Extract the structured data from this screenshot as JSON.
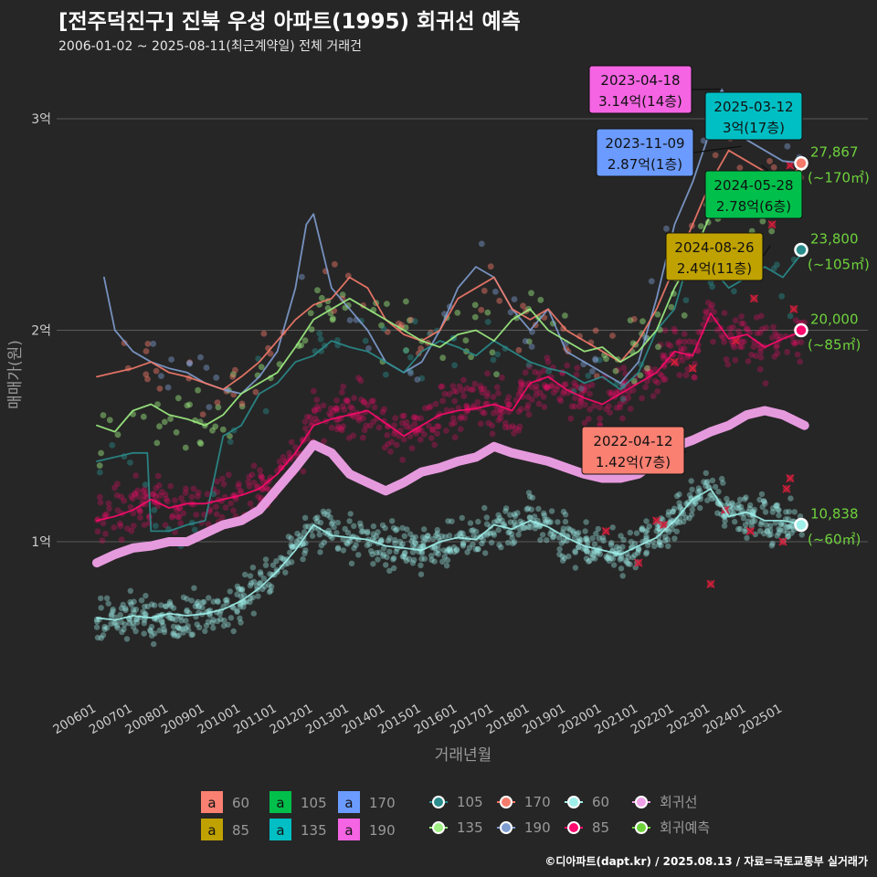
{
  "title": "[전주덕진구] 진북 우성 아파트(1995) 회귀선 예측",
  "subtitle": "2006-01-02 ~ 2025-08-11(최근계약일) 전체 거래건",
  "credit": "©디아파트(dapt.kr) / 2025.08.13 / 자료=국토교통부 실거래가",
  "colors": {
    "background": "#262626",
    "grid": "#5a5a5a",
    "axis_text": "#cccccc",
    "s60": "#9ff0ea",
    "s85": "#ff0a6e",
    "s105": "#2a8c8c",
    "s135": "#9fef83",
    "s170": "#f47a6a",
    "s190": "#7f9dd0",
    "regression": "#f0a0e8",
    "forecast_text": "#6ed23c",
    "box60": "#fa8072",
    "box85": "#bfa100",
    "box105": "#00c04b",
    "box135": "#00bfc4",
    "box170": "#6b9bff",
    "box190": "#f564e3",
    "cancel": "#d81e3c"
  },
  "chart_data": {
    "type": "scatter",
    "title": "[전주덕진구] 진북 우성 아파트(1995) 회귀선 예측",
    "xlabel": "거래년월",
    "ylabel": "매매가(원)",
    "xlim": [
      2006.0,
      2025.8
    ],
    "ylim": [
      0.35,
      3.3
    ],
    "x_ticks": [
      "200601",
      "200701",
      "200801",
      "200901",
      "201001",
      "201101",
      "201201",
      "201301",
      "201401",
      "201501",
      "201601",
      "201701",
      "201801",
      "201901",
      "202001",
      "202101",
      "202201",
      "202301",
      "202401",
      "202501"
    ],
    "x_tick_values": [
      2006,
      2007,
      2008,
      2009,
      2010,
      2011,
      2012,
      2013,
      2014,
      2015,
      2016,
      2017,
      2018,
      2019,
      2020,
      2021,
      2022,
      2023,
      2024,
      2025
    ],
    "y_ticks": [
      "1억",
      "2억",
      "3억"
    ],
    "y_tick_values": [
      1,
      2,
      3
    ],
    "grid": true,
    "legend_position": "bottom",
    "legend_box": [
      {
        "label": "60",
        "color_key": "box60",
        "glyph": "a"
      },
      {
        "label": "85",
        "color_key": "box85",
        "glyph": "a"
      },
      {
        "label": "105",
        "color_key": "box105",
        "glyph": "a"
      },
      {
        "label": "135",
        "color_key": "box135",
        "glyph": "a"
      },
      {
        "label": "170",
        "color_key": "box170",
        "glyph": "a"
      },
      {
        "label": "190",
        "color_key": "box190",
        "glyph": "a"
      }
    ],
    "legend_lines": [
      {
        "label": "105",
        "color_key": "s105"
      },
      {
        "label": "135",
        "color_key": "s135"
      },
      {
        "label": "170",
        "color_key": "s170"
      },
      {
        "label": "190",
        "color_key": "s190"
      },
      {
        "label": "60",
        "color_key": "s60"
      },
      {
        "label": "85",
        "color_key": "s85"
      },
      {
        "label": "회귀선",
        "color_key": "regression"
      },
      {
        "label": "회귀예측",
        "color_key": "forecast_text"
      }
    ],
    "series": [
      {
        "name": "60",
        "color_key": "s60",
        "x": [
          2006.0,
          2006.5,
          2007.0,
          2007.5,
          2008.0,
          2008.5,
          2009.0,
          2009.5,
          2010.0,
          2010.5,
          2011.0,
          2011.5,
          2012.0,
          2012.5,
          2013.0,
          2013.5,
          2014.0,
          2014.5,
          2015.0,
          2015.5,
          2016.0,
          2016.5,
          2017.0,
          2017.5,
          2018.0,
          2018.5,
          2019.0,
          2019.5,
          2020.0,
          2020.5,
          2021.0,
          2021.5,
          2022.0,
          2022.5,
          2023.0,
          2023.5,
          2024.0,
          2024.5,
          2025.0,
          2025.6
        ],
        "values": [
          0.64,
          0.63,
          0.65,
          0.64,
          0.66,
          0.65,
          0.66,
          0.68,
          0.72,
          0.78,
          0.86,
          0.96,
          1.08,
          1.03,
          1.02,
          1.01,
          0.98,
          0.97,
          0.96,
          1.0,
          1.02,
          1.01,
          1.08,
          1.06,
          1.1,
          1.07,
          1.02,
          0.98,
          0.96,
          0.94,
          0.98,
          1.02,
          1.1,
          1.2,
          1.25,
          1.12,
          1.14,
          1.1,
          1.1,
          1.08
        ]
      },
      {
        "name": "85",
        "color_key": "s85",
        "x": [
          2006.0,
          2006.5,
          2007.0,
          2007.5,
          2008.0,
          2008.5,
          2009.0,
          2009.5,
          2010.0,
          2010.5,
          2011.0,
          2011.5,
          2012.0,
          2012.5,
          2013.0,
          2013.5,
          2014.0,
          2014.5,
          2015.0,
          2015.5,
          2016.0,
          2016.5,
          2017.0,
          2017.5,
          2018.0,
          2018.5,
          2019.0,
          2019.5,
          2020.0,
          2020.5,
          2021.0,
          2021.5,
          2022.0,
          2022.5,
          2023.0,
          2023.5,
          2024.0,
          2024.5,
          2025.0,
          2025.6
        ],
        "values": [
          1.1,
          1.12,
          1.15,
          1.2,
          1.16,
          1.18,
          1.18,
          1.2,
          1.22,
          1.25,
          1.32,
          1.42,
          1.55,
          1.58,
          1.6,
          1.62,
          1.56,
          1.5,
          1.55,
          1.6,
          1.62,
          1.63,
          1.65,
          1.62,
          1.75,
          1.78,
          1.72,
          1.68,
          1.65,
          1.7,
          1.75,
          1.8,
          1.9,
          1.88,
          2.08,
          1.96,
          1.98,
          1.92,
          1.96,
          2.0
        ]
      },
      {
        "name": "105",
        "color_key": "s105",
        "x": [
          2006.0,
          2006.5,
          2007.0,
          2007.4,
          2007.5,
          2008.0,
          2008.5,
          2009.0,
          2009.5,
          2010.0,
          2010.5,
          2011.0,
          2011.5,
          2012.0,
          2012.5,
          2013.0,
          2013.5,
          2014.0,
          2014.5,
          2015.0,
          2015.5,
          2016.0,
          2016.5,
          2017.0,
          2017.5,
          2018.0,
          2018.5,
          2019.0,
          2019.5,
          2020.0,
          2020.5,
          2021.0,
          2021.5,
          2022.0,
          2022.5,
          2023.0,
          2023.5,
          2024.0,
          2024.5,
          2025.0,
          2025.6
        ],
        "values": [
          1.38,
          1.4,
          1.42,
          1.42,
          1.05,
          1.05,
          1.08,
          1.1,
          1.5,
          1.55,
          1.7,
          1.75,
          1.85,
          1.88,
          1.95,
          1.92,
          1.9,
          1.85,
          1.8,
          1.9,
          1.95,
          1.92,
          1.88,
          1.95,
          1.9,
          1.85,
          1.82,
          1.8,
          1.75,
          1.78,
          1.72,
          1.8,
          2.0,
          2.1,
          2.4,
          2.3,
          2.2,
          2.25,
          2.3,
          2.25,
          2.38
        ]
      },
      {
        "name": "135",
        "color_key": "s135",
        "x": [
          2006.0,
          2006.5,
          2007.0,
          2007.5,
          2008.0,
          2008.5,
          2009.0,
          2009.5,
          2010.0,
          2010.5,
          2011.0,
          2011.5,
          2012.0,
          2012.5,
          2013.0,
          2013.5,
          2014.0,
          2014.5,
          2015.0,
          2015.5,
          2016.0,
          2016.5,
          2017.0,
          2017.5,
          2018.0,
          2018.5,
          2019.0,
          2019.5,
          2020.0,
          2020.5,
          2021.0,
          2021.5,
          2022.0,
          2022.5,
          2023.0,
          2023.5,
          2024.0,
          2024.5,
          2025.0,
          2025.6
        ],
        "values": [
          1.55,
          1.52,
          1.62,
          1.65,
          1.6,
          1.58,
          1.55,
          1.6,
          1.7,
          1.75,
          1.8,
          1.92,
          2.05,
          2.1,
          2.15,
          2.1,
          2.05,
          2.0,
          1.95,
          1.92,
          1.98,
          2.0,
          1.95,
          2.05,
          2.1,
          2.0,
          1.95,
          1.9,
          1.92,
          1.85,
          1.9,
          2.0,
          2.2,
          2.35,
          2.55,
          2.6,
          2.65,
          2.55,
          2.6,
          2.78
        ]
      },
      {
        "name": "170",
        "color_key": "s170",
        "x": [
          2006.0,
          2006.5,
          2007.0,
          2007.5,
          2008.0,
          2008.5,
          2009.0,
          2009.5,
          2010.0,
          2010.5,
          2011.0,
          2011.5,
          2012.0,
          2012.5,
          2013.0,
          2013.5,
          2014.0,
          2014.5,
          2015.0,
          2015.5,
          2016.0,
          2016.5,
          2017.0,
          2017.5,
          2018.0,
          2018.5,
          2019.0,
          2019.5,
          2020.0,
          2020.5,
          2021.0,
          2021.5,
          2022.0,
          2022.5,
          2023.0,
          2023.5,
          2024.0,
          2024.5,
          2025.0,
          2025.6
        ],
        "values": [
          1.78,
          1.8,
          1.82,
          1.85,
          1.8,
          1.78,
          1.75,
          1.72,
          1.78,
          1.85,
          1.95,
          2.05,
          2.12,
          2.15,
          2.25,
          2.2,
          2.05,
          1.98,
          1.95,
          2.0,
          2.15,
          2.2,
          2.25,
          2.1,
          2.05,
          2.1,
          2.0,
          1.95,
          1.9,
          1.85,
          1.95,
          2.1,
          2.3,
          2.5,
          2.7,
          2.85,
          2.8,
          2.75,
          2.7,
          2.79
        ]
      },
      {
        "name": "190",
        "color_key": "s190",
        "x": [
          2006.2,
          2006.5,
          2007.0,
          2007.5,
          2008.0,
          2008.5,
          2009.0,
          2009.5,
          2010.0,
          2010.5,
          2011.0,
          2011.5,
          2011.8,
          2012.0,
          2012.5,
          2013.0,
          2013.5,
          2014.0,
          2014.5,
          2015.0,
          2015.5,
          2016.0,
          2016.5,
          2017.0,
          2017.5,
          2018.0,
          2018.5,
          2019.0,
          2019.5,
          2020.0,
          2020.5,
          2021.0,
          2021.5,
          2022.0,
          2022.5,
          2023.0,
          2023.3,
          2023.6,
          2024.0,
          2024.5,
          2025.0,
          2025.6
        ],
        "values": [
          2.25,
          2.0,
          1.9,
          1.85,
          1.82,
          1.8,
          1.75,
          1.72,
          1.7,
          1.78,
          1.9,
          2.2,
          2.5,
          2.55,
          2.2,
          2.1,
          2.0,
          1.85,
          1.8,
          1.85,
          2.0,
          2.2,
          2.3,
          2.25,
          2.1,
          2.0,
          2.1,
          1.9,
          1.85,
          1.8,
          1.75,
          1.85,
          2.15,
          2.5,
          2.7,
          2.95,
          3.14,
          3.05,
          2.9,
          2.85,
          2.8,
          2.79
        ]
      },
      {
        "name": "회귀선",
        "color_key": "regression",
        "x": [
          2006.0,
          2006.5,
          2007.0,
          2007.5,
          2008.0,
          2008.5,
          2009.0,
          2009.5,
          2010.0,
          2010.5,
          2011.0,
          2011.5,
          2012.0,
          2012.5,
          2013.0,
          2013.5,
          2014.0,
          2014.5,
          2015.0,
          2015.5,
          2016.0,
          2016.5,
          2017.0,
          2017.5,
          2018.0,
          2018.5,
          2019.0,
          2019.5,
          2020.0,
          2020.5,
          2021.0,
          2021.5,
          2022.0,
          2022.5,
          2023.0,
          2023.5,
          2024.0,
          2024.5,
          2025.0,
          2025.6
        ],
        "values": [
          0.9,
          0.94,
          0.97,
          0.98,
          1.0,
          1.0,
          1.04,
          1.08,
          1.1,
          1.15,
          1.25,
          1.35,
          1.46,
          1.42,
          1.32,
          1.28,
          1.24,
          1.28,
          1.33,
          1.35,
          1.38,
          1.4,
          1.45,
          1.42,
          1.4,
          1.38,
          1.35,
          1.32,
          1.3,
          1.3,
          1.32,
          1.38,
          1.45,
          1.48,
          1.52,
          1.55,
          1.6,
          1.62,
          1.6,
          1.55
        ]
      }
    ],
    "forecasts": [
      {
        "series": "170",
        "value_label": "27,867",
        "area_label": "(~170㎡)",
        "y": 2.79
      },
      {
        "series": "105",
        "value_label": "23,800",
        "area_label": "(~105㎡)",
        "y": 2.38
      },
      {
        "series": "85",
        "value_label": "20,000",
        "area_label": "(~85㎡)",
        "y": 2.0
      },
      {
        "series": "60",
        "value_label": "10,838",
        "area_label": "(~60㎡)",
        "y": 1.08
      }
    ],
    "annotations": [
      {
        "date": "2023-04-18",
        "price": "3.14억(14층)",
        "color_key": "box190",
        "x": 2023.3,
        "y": 3.14
      },
      {
        "date": "2025-03-12",
        "price": "3억(17층)",
        "color_key": "box135",
        "x": 2025.2,
        "y": 3.0
      },
      {
        "date": "2023-11-09",
        "price": "2.87억(1층)",
        "color_key": "box170",
        "x": 2023.85,
        "y": 2.87
      },
      {
        "date": "2024-05-28",
        "price": "2.78억(6층)",
        "color_key": "box105",
        "x": 2024.4,
        "y": 2.78
      },
      {
        "date": "2024-08-26",
        "price": "2.4억(11층)",
        "color_key": "box85",
        "x": 2024.65,
        "y": 2.4
      },
      {
        "date": "2022-04-12",
        "price": "1.42억(7층)",
        "color_key": "box60",
        "x": 2022.3,
        "y": 1.42
      }
    ]
  }
}
